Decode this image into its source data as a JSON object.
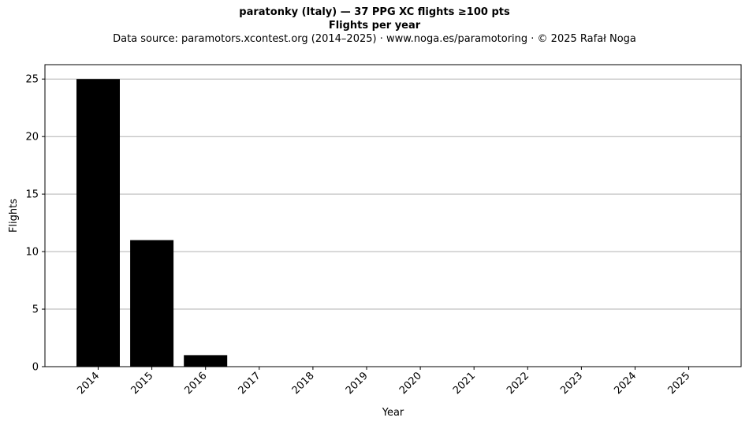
{
  "chart_data": {
    "type": "bar",
    "title": "paratonky (Italy)  —  37 PPG XC flights ≥100 pts",
    "subtitle": "Flights per year",
    "source": "Data source: paramotors.xcontest.org (2014–2025)  ·  www.noga.es/paramotoring  ·  © 2025 Rafał Noga",
    "xlabel": "Year",
    "ylabel": "Flights",
    "categories": [
      "2014",
      "2015",
      "2016",
      "2017",
      "2018",
      "2019",
      "2020",
      "2021",
      "2022",
      "2023",
      "2024",
      "2025"
    ],
    "values": [
      25,
      11,
      1,
      0,
      0,
      0,
      0,
      0,
      0,
      0,
      0,
      0
    ],
    "ylim": [
      0,
      26.25
    ],
    "yticks": [
      0,
      5,
      10,
      15,
      20,
      25
    ],
    "grid": "horizontal",
    "bar_color": "#000000",
    "grid_color": "#b0b0b0"
  }
}
